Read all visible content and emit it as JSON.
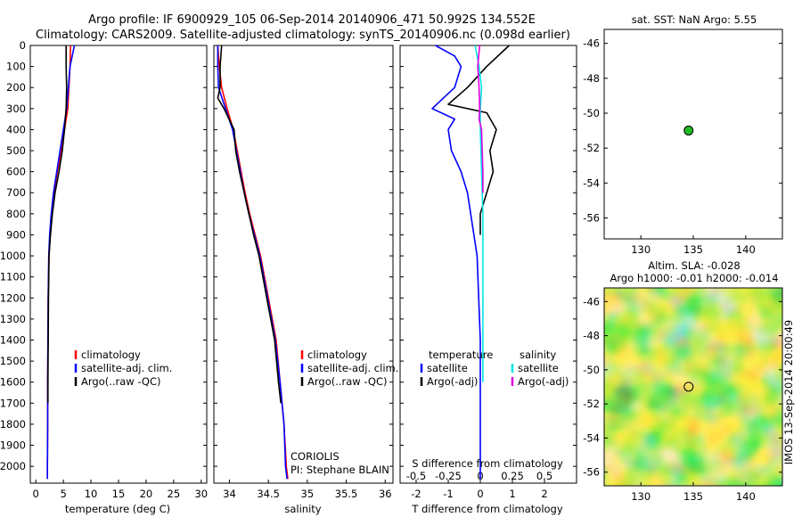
{
  "title_line1": "Argo profile: IF 6900929_105 06-Sep-2014 20140906_471 50.992S 134.552E",
  "title_line2": "Climatology: CARS2009. Satellite-adjusted climatology: synTS_20140906.nc (0.098d earlier)",
  "side_label": "IMOS 13-Sep-2014 20:00:49",
  "colors": {
    "climatology": "#ff0000",
    "satellite": "#0000ff",
    "argo": "#000000",
    "sal_satellite": "#00e5e5",
    "sal_argo": "#e000e0",
    "marker": "#22bb22"
  },
  "chart_data": [
    {
      "type": "line",
      "xlabel": "temperature (deg C)",
      "xlim": [
        -1,
        31
      ],
      "xticks": [
        "0",
        "5",
        "10",
        "15",
        "20",
        "25",
        "30"
      ],
      "ylim": [
        2080,
        0
      ],
      "yticks": [
        "0",
        "100",
        "200",
        "300",
        "400",
        "500",
        "600",
        "700",
        "800",
        "900",
        "1000",
        "1100",
        "1200",
        "1300",
        "1400",
        "1500",
        "1600",
        "1700",
        "1800",
        "1900",
        "2000"
      ],
      "legend": [
        "climatology",
        "satellite-adj. clim.",
        "Argo(..raw -QC)"
      ],
      "series": [
        {
          "name": "climatology",
          "color": "#ff0000",
          "x": [
            6.3,
            6.2,
            6.0,
            5.8,
            5.2,
            4.6,
            3.9,
            3.3,
            2.9,
            2.6,
            2.4,
            2.25,
            2.2,
            2.15,
            2.15,
            2.1,
            2.1
          ],
          "y": [
            0,
            100,
            200,
            300,
            400,
            500,
            600,
            700,
            800,
            900,
            1000,
            1200,
            1400,
            1600,
            1800,
            2000,
            2060
          ]
        },
        {
          "name": "satellite-adj. clim.",
          "color": "#0000ff",
          "x": [
            7.0,
            6.2,
            5.9,
            5.6,
            5.0,
            4.4,
            3.8,
            3.2,
            2.8,
            2.5,
            2.35,
            2.25,
            2.2,
            2.15,
            2.15,
            2.1,
            2.1
          ],
          "y": [
            0,
            100,
            200,
            300,
            400,
            500,
            600,
            700,
            800,
            900,
            1000,
            1200,
            1400,
            1600,
            1800,
            2000,
            2060
          ]
        },
        {
          "name": "Argo(..raw -QC)",
          "color": "#000000",
          "x": [
            5.5,
            5.5,
            5.6,
            5.5,
            5.2,
            4.8,
            4.2,
            3.5,
            3.0,
            2.65,
            2.4,
            2.3,
            2.25,
            2.2,
            2.2
          ],
          "y": [
            0,
            100,
            200,
            300,
            400,
            500,
            600,
            700,
            800,
            900,
            1000,
            1200,
            1400,
            1600,
            1700
          ]
        }
      ]
    },
    {
      "type": "line",
      "xlabel": "salinity",
      "xlim": [
        33.8,
        36.1
      ],
      "xticks": [
        "34",
        "34.5",
        "35",
        "35.5",
        "36"
      ],
      "ylim": [
        2080,
        0
      ],
      "legend": [
        "climatology",
        "satellite-adj. clim.",
        "Argo(..raw -QC)"
      ],
      "annotations": [
        "CORIOLIS",
        "PI: Stephane BLAIN"
      ],
      "series": [
        {
          "name": "climatology",
          "color": "#ff0000",
          "x": [
            33.85,
            33.87,
            33.9,
            33.97,
            34.05,
            34.1,
            34.15,
            34.2,
            34.26,
            34.33,
            34.4,
            34.5,
            34.6,
            34.65,
            34.7,
            34.73,
            34.75
          ],
          "y": [
            0,
            100,
            200,
            300,
            400,
            500,
            600,
            700,
            800,
            900,
            1000,
            1200,
            1400,
            1600,
            1800,
            2000,
            2060
          ]
        },
        {
          "name": "satellite-adj. clim.",
          "color": "#0000ff",
          "x": [
            33.85,
            33.85,
            33.86,
            33.95,
            34.04,
            34.09,
            34.14,
            34.19,
            34.25,
            34.32,
            34.39,
            34.49,
            34.59,
            34.65,
            34.7,
            34.72,
            34.74
          ],
          "y": [
            0,
            100,
            200,
            300,
            400,
            500,
            600,
            700,
            800,
            900,
            1000,
            1200,
            1400,
            1600,
            1800,
            2000,
            2060
          ]
        },
        {
          "name": "Argo(..raw -QC)",
          "color": "#000000",
          "x": [
            33.9,
            33.88,
            33.88,
            33.85,
            33.93,
            34.06,
            34.08,
            34.13,
            34.19,
            34.25,
            34.31,
            34.38,
            34.48,
            34.58,
            34.63,
            34.66
          ],
          "y": [
            0,
            100,
            200,
            250,
            300,
            400,
            500,
            600,
            700,
            800,
            900,
            1000,
            1200,
            1400,
            1600,
            1700
          ]
        }
      ]
    },
    {
      "type": "line",
      "xlabel": "T difference from climatology",
      "xlim": [
        -2.5,
        3.0
      ],
      "xticks": [
        "-2",
        "-1",
        "0",
        "1",
        "2"
      ],
      "xlabel2": "S difference from climatology",
      "xlim2": [
        -0.625,
        0.75
      ],
      "xticks2": [
        "-0.5",
        "-0.25",
        "0",
        "0.25",
        "0.5"
      ],
      "ylim": [
        2080,
        0
      ],
      "legend_titles": [
        "temperature",
        "salinity"
      ],
      "legend_left": [
        "satellite",
        "Argo(-adj)"
      ],
      "legend_right": [
        "satellite",
        "Argo(-adj)"
      ],
      "series": [
        {
          "name": "satellite",
          "color": "#0000ff",
          "x": [
            -1.4,
            -0.8,
            -0.6,
            -0.8,
            -1.5,
            -0.8,
            -1.0,
            -0.9,
            -0.6,
            -0.4,
            -0.3,
            -0.1,
            -0.05,
            0.0,
            0.0,
            0.0
          ],
          "y": [
            0,
            50,
            100,
            200,
            300,
            350,
            400,
            500,
            600,
            700,
            800,
            1000,
            1200,
            1400,
            1600,
            2060
          ]
        },
        {
          "name": "Argo(-adj)",
          "color": "#000000",
          "x": [
            0.9,
            0.2,
            -0.4,
            -1.0,
            0.2,
            0.5,
            0.3,
            0.4,
            0.3,
            0.2,
            0.0,
            0.0
          ],
          "y": [
            0,
            100,
            200,
            280,
            320,
            400,
            500,
            600,
            650,
            700,
            800,
            900
          ]
        },
        {
          "name": "satellite",
          "color": "#00e5e5",
          "x": [
            -0.04,
            -0.01,
            0.01,
            0.0,
            0.0,
            0.01,
            0.02,
            0.02,
            0.02,
            0.02
          ],
          "y": [
            0,
            100,
            200,
            300,
            400,
            600,
            800,
            1000,
            1200,
            1600
          ]
        },
        {
          "name": "Argo(-adj)",
          "color": "#e000e0",
          "x": [
            -0.005,
            -0.02,
            -0.01,
            -0.005,
            -0.01,
            0.01,
            0.02,
            0.02
          ],
          "y": [
            0,
            100,
            200,
            300,
            350,
            400,
            600,
            700
          ]
        }
      ]
    },
    {
      "type": "scatter",
      "title": "sat. SST: NaN Argo: 5.55",
      "xlim": [
        126.5,
        143.5
      ],
      "xticks": [
        "130",
        "135",
        "140"
      ],
      "ylim": [
        -57.2,
        -45.2
      ],
      "yticks": [
        "-46",
        "-48",
        "-50",
        "-52",
        "-54",
        "-56"
      ],
      "points": [
        {
          "x": 134.552,
          "y": -50.992
        }
      ]
    },
    {
      "type": "heatmap",
      "title_line1": "Altim. SLA: -0.028",
      "title_line2": "Argo h1000: -0.01 h2000: -0.014",
      "xlim": [
        126.5,
        143.5
      ],
      "xticks": [
        "130",
        "135",
        "140"
      ],
      "ylim": [
        -56.8,
        -45.2
      ],
      "yticks": [
        "-46",
        "-48",
        "-50",
        "-52",
        "-54",
        "-56"
      ],
      "points": [
        {
          "x": 134.552,
          "y": -50.992
        }
      ]
    }
  ]
}
